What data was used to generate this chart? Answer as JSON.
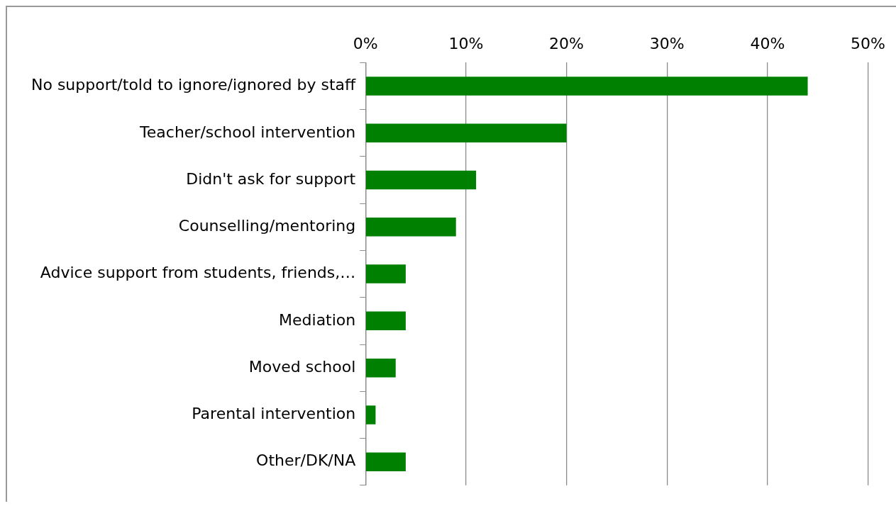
{
  "chart_data": {
    "type": "bar",
    "orientation": "horizontal",
    "categories": [
      "No support/told to ignore/ignored by staff",
      "Teacher/school intervention",
      "Didn't ask for support",
      "Counselling/mentoring",
      "Advice support from students, friends,…",
      "Mediation",
      "Moved school",
      "Parental intervention",
      "Other/DK/NA"
    ],
    "values": [
      44,
      20,
      11,
      9,
      4,
      4,
      3,
      1,
      4
    ],
    "color": "#008000",
    "xlim": [
      0,
      50
    ],
    "xticks": [
      {
        "value": 0,
        "label": "0%"
      },
      {
        "value": 10,
        "label": "10%"
      },
      {
        "value": 20,
        "label": "20%"
      },
      {
        "value": 30,
        "label": "30%"
      },
      {
        "value": 40,
        "label": "40%"
      },
      {
        "value": 50,
        "label": "50%"
      }
    ],
    "grid": "x",
    "legend": false
  }
}
